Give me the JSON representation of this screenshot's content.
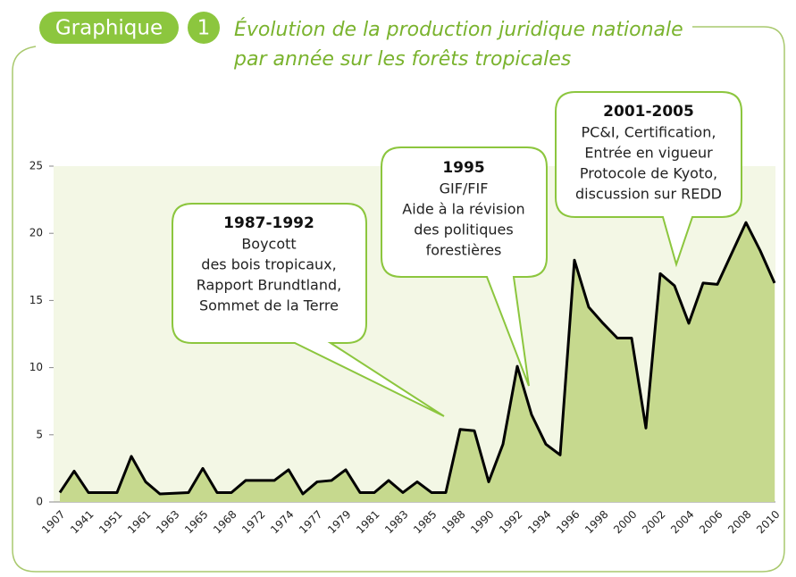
{
  "header": {
    "label": "Graphique",
    "number": "1"
  },
  "chart_data": {
    "type": "area",
    "title": [
      "Évolution de la production juridique nationale",
      "par année sur les forêts tropicales"
    ],
    "categories": [
      "1907",
      null,
      "1941",
      null,
      "1951",
      null,
      "1961",
      null,
      "1963",
      null,
      "1965",
      null,
      "1968",
      null,
      "1972",
      null,
      "1974",
      null,
      "1977",
      null,
      "1979",
      null,
      "1981",
      null,
      "1983",
      null,
      "1985",
      null,
      "1988",
      null,
      "1990",
      null,
      "1992",
      null,
      "1994",
      null,
      "1996",
      null,
      "1998",
      null,
      "2000",
      null,
      "2002",
      null,
      "2004",
      null,
      "2006",
      null,
      "2008",
      null,
      "2010"
    ],
    "values": [
      0.7,
      2.3,
      0.7,
      0.7,
      0.7,
      3.4,
      1.5,
      0.6,
      0.65,
      0.7,
      2.5,
      0.7,
      0.7,
      1.6,
      1.6,
      1.6,
      2.4,
      0.6,
      1.5,
      1.6,
      2.4,
      0.7,
      0.7,
      1.6,
      0.7,
      1.5,
      0.7,
      0.7,
      5.4,
      5.3,
      1.5,
      4.3,
      10.1,
      6.5,
      4.3,
      3.5,
      18,
      14.5,
      13.3,
      12.2,
      12.2,
      5.5,
      17,
      16.1,
      13.3,
      16.3,
      16.2,
      18.5,
      20.8,
      18.7,
      16.3
    ],
    "color": "#c6d98e",
    "line_color": "#000000",
    "ylim": [
      0,
      25
    ],
    "yticks": [
      0,
      5,
      10,
      15,
      20,
      25
    ],
    "grid": false,
    "annotations": [
      {
        "title": "1987-1992",
        "lines": [
          "Boycott",
          "des bois tropicaux,",
          "Rapport Brundtland,",
          "Sommet de la Terre"
        ]
      },
      {
        "title": "1995",
        "lines": [
          "GIF/FIF",
          "Aide à la révision",
          "des politiques",
          "forestières"
        ]
      },
      {
        "title": "2001-2005",
        "lines": [
          "PC&I, Certification,",
          "Entrée en vigueur",
          "Protocole de Kyoto,",
          "discussion sur REDD"
        ]
      }
    ]
  }
}
